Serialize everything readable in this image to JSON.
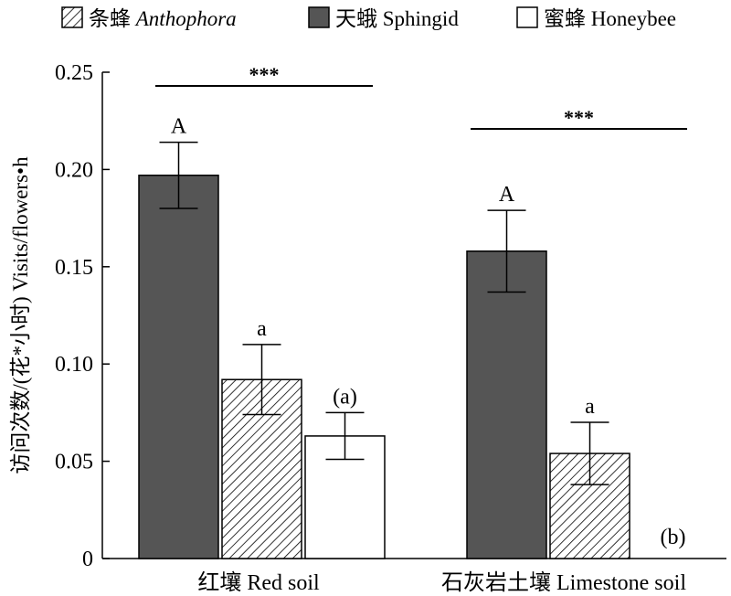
{
  "chart_data": {
    "type": "bar",
    "categories": [
      "红壤 Red soil",
      "石灰岩土壤 Limestone soil"
    ],
    "series": [
      {
        "name": "天蛾 Sphingid",
        "name_cn": "天蛾",
        "name_en": "Sphingid",
        "name_italic": false,
        "fill": "#555555",
        "pattern": "solid",
        "values": [
          0.197,
          0.158
        ],
        "errors": [
          0.017,
          0.021
        ],
        "labels": [
          "A",
          "A"
        ]
      },
      {
        "name": "条蜂 Anthophora",
        "name_cn": "条蜂",
        "name_en": "Anthophora",
        "name_italic": true,
        "fill": "#ffffff",
        "pattern": "hatch",
        "values": [
          0.092,
          0.054
        ],
        "errors": [
          0.018,
          0.016
        ],
        "labels": [
          "a",
          "a"
        ]
      },
      {
        "name": "蜜蜂 Honeybee",
        "name_cn": "蜜蜂",
        "name_en": "Honeybee",
        "name_italic": false,
        "fill": "#ffffff",
        "pattern": "solid",
        "values": [
          0.063,
          0
        ],
        "errors": [
          0.012,
          0
        ],
        "labels": [
          "(a)",
          "(b)"
        ]
      }
    ],
    "legend_order": [
      1,
      0,
      2
    ],
    "legend_placement": "top",
    "ylabel": "访问次数/(花*小时) Visits/flowers•h",
    "ylim": [
      0,
      0.25
    ],
    "yticks": [
      0,
      0.05,
      0.1,
      0.15,
      0.2,
      0.25
    ],
    "ytick_labels": [
      "0",
      "0.05",
      "0.10",
      "0.15",
      "0.20",
      "0.25"
    ],
    "significance": [
      {
        "category": 0,
        "label": "***"
      },
      {
        "category": 1,
        "label": "***"
      }
    ],
    "grid": false
  }
}
